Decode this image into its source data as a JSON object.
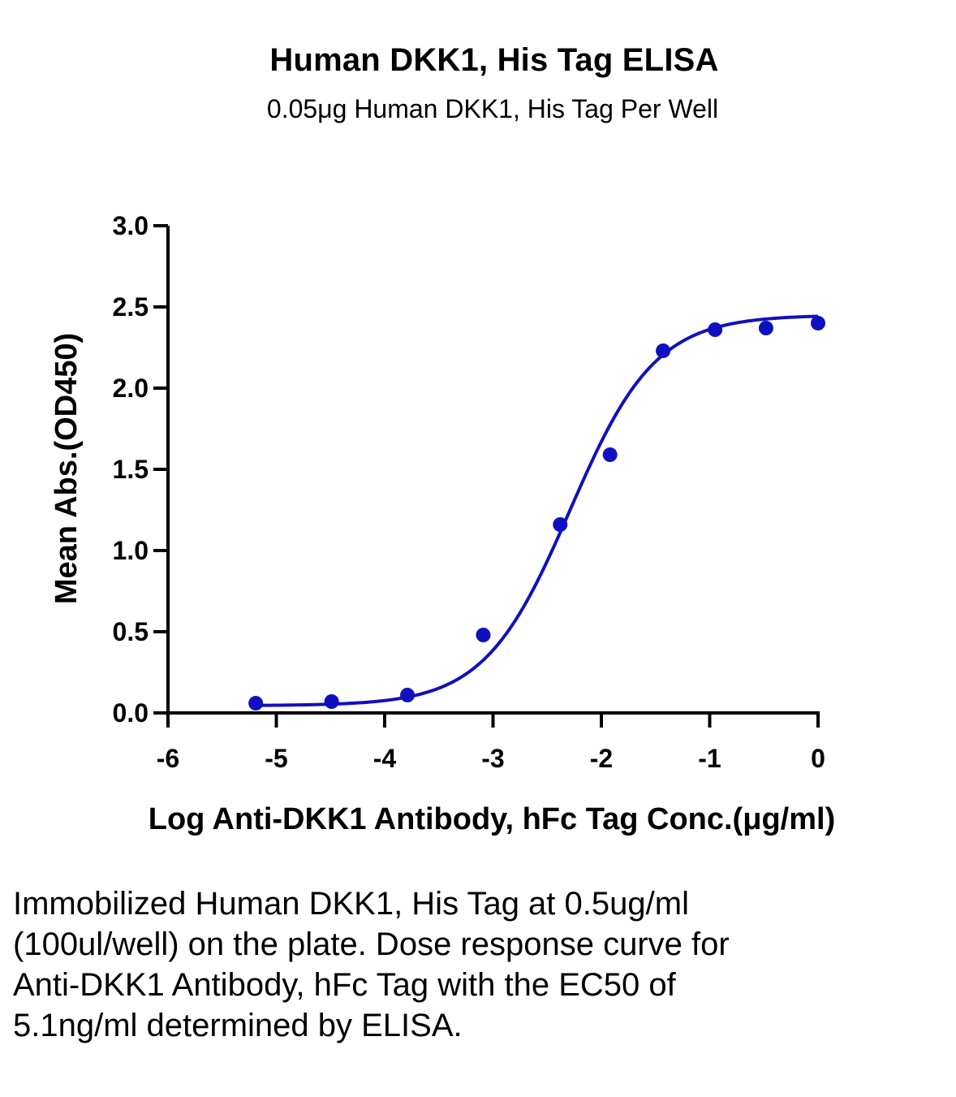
{
  "chart_data": {
    "type": "scatter",
    "title": "Human DKK1, His Tag ELISA",
    "subtitle": "0.05μg Human DKK1, His Tag Per Well",
    "xlabel": "Log Anti-DKK1 Antibody, hFc Tag Conc.(μg/ml)",
    "ylabel": "Mean Abs.(OD450)",
    "xlim": [
      -6,
      0
    ],
    "ylim": [
      0,
      3.0
    ],
    "x_ticks": [
      -6,
      -5,
      -4,
      -3,
      -2,
      -1,
      0
    ],
    "x_tick_labels": [
      "-6",
      "-5",
      "-4",
      "-3",
      "-2",
      "-1",
      "0"
    ],
    "y_ticks": [
      0,
      0.5,
      1.0,
      1.5,
      2.0,
      2.5,
      3.0
    ],
    "y_tick_labels": [
      "0.0",
      "0.5",
      "1.0",
      "1.5",
      "2.0",
      "2.5",
      "3.0"
    ],
    "grid": false,
    "series": [
      {
        "type": "scatter",
        "color": "#1010c0",
        "x": [
          -5.19,
          -4.49,
          -3.79,
          -3.09,
          -2.38,
          -1.92,
          -1.43,
          -0.95,
          -0.48,
          0.0
        ],
        "y": [
          0.06,
          0.07,
          0.11,
          0.48,
          1.16,
          1.59,
          2.23,
          2.36,
          2.37,
          2.4
        ]
      },
      {
        "type": "line",
        "fit": "4PL",
        "color": "#1010c0",
        "bottom": 0.045,
        "top": 2.45,
        "log_ec50": -2.29,
        "hill_slope": 1.1,
        "x_range": [
          -5.19,
          0.0
        ]
      }
    ]
  },
  "caption": "Immobilized Human DKK1, His Tag at 0.5ug/ml (100ul/well) on the plate. Dose response curve for Anti-DKK1 Antibody, hFc Tag with the EC50 of 5.1ng/ml determined by ELISA."
}
